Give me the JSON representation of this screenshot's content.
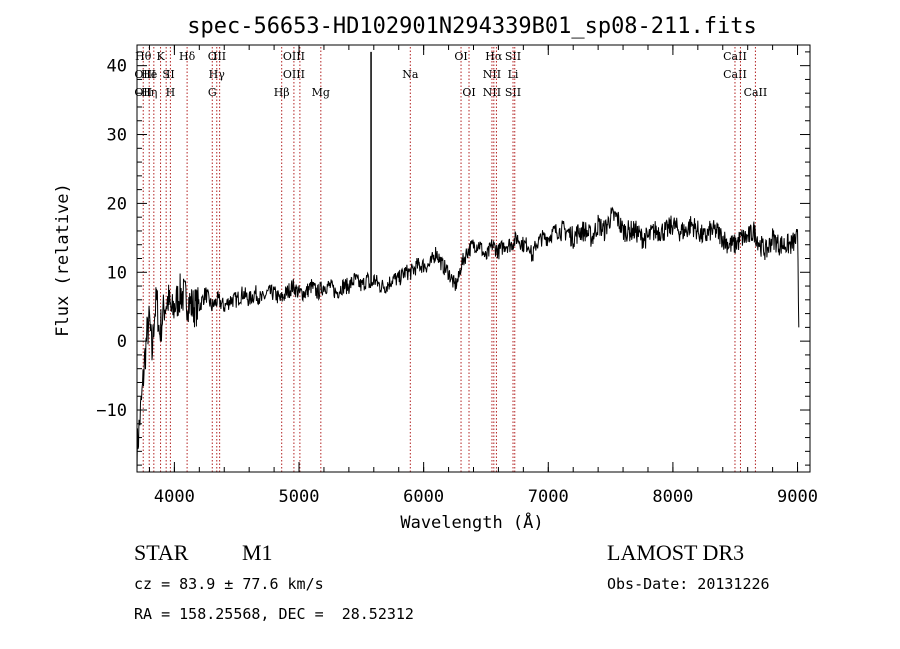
{
  "chart_data": {
    "type": "line",
    "title": "spec-56653-HD102901N294339B01_sp08-211.fits",
    "xlabel": "Wavelength (Å)",
    "ylabel": "Flux (relative)",
    "xlim": [
      3700,
      9100
    ],
    "ylim": [
      -19,
      43
    ],
    "xticks": [
      4000,
      5000,
      6000,
      7000,
      8000,
      9000
    ],
    "xtick_labels": [
      "4000",
      "5000",
      "6000",
      "7000",
      "8000",
      "9000"
    ],
    "yticks": [
      -10,
      0,
      10,
      20,
      30,
      40
    ],
    "ytick_labels": [
      "−10",
      "0",
      "10",
      "20",
      "30",
      "40"
    ],
    "series": [
      {
        "name": "flux",
        "x": [
          3700,
          3720,
          3740,
          3760,
          3780,
          3800,
          3820,
          3840,
          3860,
          3880,
          3900,
          3920,
          3950,
          3980,
          4000,
          4050,
          4100,
          4150,
          4200,
          4250,
          4300,
          4350,
          4400,
          4450,
          4500,
          4550,
          4600,
          4650,
          4700,
          4750,
          4800,
          4850,
          4900,
          4950,
          5000,
          5050,
          5100,
          5150,
          5200,
          5250,
          5300,
          5350,
          5400,
          5450,
          5500,
          5550,
          5570,
          5580,
          5600,
          5650,
          5700,
          5750,
          5800,
          5850,
          5900,
          5950,
          6000,
          6050,
          6100,
          6150,
          6200,
          6250,
          6280,
          6300,
          6350,
          6400,
          6450,
          6500,
          6550,
          6600,
          6650,
          6700,
          6750,
          6800,
          6850,
          6870,
          6900,
          6950,
          7000,
          7050,
          7100,
          7150,
          7200,
          7250,
          7300,
          7350,
          7400,
          7450,
          7500,
          7550,
          7600,
          7650,
          7700,
          7750,
          7800,
          7850,
          7900,
          7950,
          8000,
          8050,
          8100,
          8150,
          8200,
          8250,
          8300,
          8350,
          8400,
          8450,
          8500,
          8550,
          8600,
          8650,
          8700,
          8750,
          8800,
          8850,
          8900,
          8950,
          9000,
          9010
        ],
        "y": [
          -16,
          -12,
          -8,
          -3,
          1,
          3,
          -2,
          4,
          6,
          1,
          3,
          5,
          6,
          4,
          5,
          7,
          6,
          5,
          5,
          7,
          5,
          6,
          5,
          6,
          6,
          7,
          6,
          7,
          6,
          7,
          7,
          6,
          7,
          8,
          7,
          7,
          8,
          7,
          8,
          8,
          7,
          8,
          8,
          9,
          8,
          9,
          8,
          8,
          9,
          8,
          8,
          9,
          9,
          10,
          10,
          11,
          11,
          11,
          13,
          11,
          10,
          8,
          9,
          11,
          13,
          14,
          14,
          12,
          14,
          13,
          14,
          14,
          15,
          14,
          14,
          12,
          14,
          15,
          15,
          16,
          16,
          16,
          15,
          16,
          16,
          15,
          17,
          16,
          18,
          18,
          16,
          16,
          16,
          15,
          15,
          16,
          16,
          16,
          17,
          16,
          16,
          17,
          16,
          15,
          16,
          16,
          15,
          14,
          14,
          15,
          15,
          16,
          14,
          13,
          15,
          14,
          14,
          14,
          15,
          2
        ],
        "noise_seed": 7,
        "noise_amp": 1.2
      }
    ],
    "spike": {
      "x": 5578,
      "y_from": 8,
      "y_to": 42
    },
    "emission_lines": [
      {
        "x": 3750,
        "labels": [
          {
            "t": "Hθ",
            "row": 1
          },
          {
            "t": "OII",
            "row": 2
          },
          {
            "t": "OII",
            "row": 3
          }
        ]
      },
      {
        "x": 3798,
        "labels": [
          {
            "t": "He",
            "row": 2
          },
          {
            "t": "Hη",
            "row": 3
          }
        ]
      },
      {
        "x": 3835,
        "labels": [
          {
            "t": "I",
            "row": 2
          }
        ]
      },
      {
        "x": 3889,
        "labels": [
          {
            "t": "K",
            "row": 1
          }
        ]
      },
      {
        "x": 3934,
        "labels": [
          {
            "t": "S",
            "row": 2
          }
        ]
      },
      {
        "x": 3968,
        "labels": [
          {
            "t": "II",
            "row": 2
          },
          {
            "t": "H",
            "row": 3
          }
        ]
      },
      {
        "x": 4102,
        "labels": [
          {
            "t": "Hδ",
            "row": 1
          }
        ]
      },
      {
        "x": 4304,
        "labels": [
          {
            "t": "O",
            "row": 1
          },
          {
            "t": "G",
            "row": 3
          }
        ]
      },
      {
        "x": 4340,
        "labels": [
          {
            "t": "Hγ",
            "row": 2
          }
        ]
      },
      {
        "x": 4363,
        "labels": [
          {
            "t": "III",
            "row": 1
          }
        ]
      },
      {
        "x": 4861,
        "labels": [
          {
            "t": "Hβ",
            "row": 3
          }
        ]
      },
      {
        "x": 4959,
        "labels": [
          {
            "t": "OIII",
            "row": 1
          },
          {
            "t": "OIII",
            "row": 2
          }
        ]
      },
      {
        "x": 5007,
        "labels": []
      },
      {
        "x": 5175,
        "labels": [
          {
            "t": "Mg",
            "row": 3
          }
        ]
      },
      {
        "x": 5893,
        "labels": [
          {
            "t": "Na",
            "row": 2
          }
        ]
      },
      {
        "x": 6300,
        "labels": [
          {
            "t": "OI",
            "row": 1
          }
        ]
      },
      {
        "x": 6364,
        "labels": [
          {
            "t": "OI",
            "row": 3
          }
        ]
      },
      {
        "x": 6548,
        "labels": [
          {
            "t": "NII",
            "row": 2
          },
          {
            "t": "NII",
            "row": 3
          }
        ]
      },
      {
        "x": 6563,
        "labels": [
          {
            "t": "Hα",
            "row": 1
          }
        ]
      },
      {
        "x": 6584,
        "labels": []
      },
      {
        "x": 6717,
        "labels": [
          {
            "t": "SII",
            "row": 1
          },
          {
            "t": "Li",
            "row": 2
          },
          {
            "t": "SII",
            "row": 3
          }
        ]
      },
      {
        "x": 6731,
        "labels": []
      },
      {
        "x": 8498,
        "labels": [
          {
            "t": "CaII",
            "row": 1
          },
          {
            "t": "CaII",
            "row": 2
          }
        ]
      },
      {
        "x": 8542,
        "labels": []
      },
      {
        "x": 8662,
        "labels": [
          {
            "t": "CaII",
            "row": 3
          }
        ]
      }
    ],
    "line_color": "#000000",
    "marker_color": "#b22222"
  },
  "info": {
    "object_class": "STAR",
    "subclass": "M1",
    "cz": "cz = 83.9 ± 77.6 km/s",
    "coords": "RA = 158.25568, DEC =  28.52312",
    "survey": "LAMOST DR3",
    "obs_date": "Obs-Date: 20131226"
  }
}
